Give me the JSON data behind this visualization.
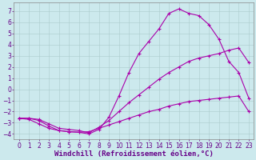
{
  "xlabel": "Windchill (Refroidissement éolien,°C)",
  "background_color": "#cce9ed",
  "grid_color": "#aacccc",
  "line_color": "#aa00aa",
  "xlim": [
    -0.5,
    23.5
  ],
  "ylim": [
    -4.5,
    7.8
  ],
  "xticks": [
    0,
    1,
    2,
    3,
    4,
    5,
    6,
    7,
    8,
    9,
    10,
    11,
    12,
    13,
    14,
    15,
    16,
    17,
    18,
    19,
    20,
    21,
    22,
    23
  ],
  "yticks": [
    -4,
    -3,
    -2,
    -1,
    0,
    1,
    2,
    3,
    4,
    5,
    6,
    7
  ],
  "line1_x": [
    0,
    1,
    2,
    3,
    4,
    5,
    6,
    7,
    8,
    9,
    10,
    11,
    12,
    13,
    14,
    15,
    16,
    17,
    18,
    19,
    20,
    21,
    22,
    23
  ],
  "line1_y": [
    -2.6,
    -2.7,
    -3.1,
    -3.5,
    -3.7,
    -3.8,
    -3.85,
    -3.8,
    -3.5,
    -3.2,
    -2.9,
    -2.6,
    -2.3,
    -2.0,
    -1.8,
    -1.5,
    -1.3,
    -1.1,
    -1.0,
    -0.9,
    -0.8,
    -0.7,
    -0.6,
    -2.0
  ],
  "line2_x": [
    0,
    1,
    2,
    3,
    4,
    5,
    6,
    7,
    8,
    9,
    10,
    11,
    12,
    13,
    14,
    15,
    16,
    17,
    18,
    19,
    20,
    21,
    22,
    23
  ],
  "line2_y": [
    -2.6,
    -2.6,
    -2.7,
    -3.1,
    -3.5,
    -3.6,
    -3.7,
    -3.9,
    -3.4,
    -2.8,
    -2.0,
    -1.2,
    -0.5,
    0.2,
    0.9,
    1.5,
    2.0,
    2.5,
    2.8,
    3.0,
    3.2,
    3.5,
    3.7,
    2.4
  ],
  "line3_x": [
    0,
    1,
    2,
    3,
    4,
    5,
    6,
    7,
    8,
    9,
    10,
    11,
    12,
    13,
    14,
    15,
    16,
    17,
    18,
    19,
    20,
    21,
    22,
    23
  ],
  "line3_y": [
    -2.6,
    -2.6,
    -2.8,
    -3.3,
    -3.7,
    -3.8,
    -3.85,
    -4.0,
    -3.6,
    -2.5,
    -0.6,
    1.5,
    3.2,
    4.3,
    5.4,
    6.8,
    7.2,
    6.8,
    6.6,
    5.8,
    4.5,
    2.5,
    1.5,
    -0.8
  ],
  "xlabel_color": "#660088",
  "xlabel_fontsize": 6.5,
  "tick_fontsize": 5.5,
  "tick_color": "#660088"
}
